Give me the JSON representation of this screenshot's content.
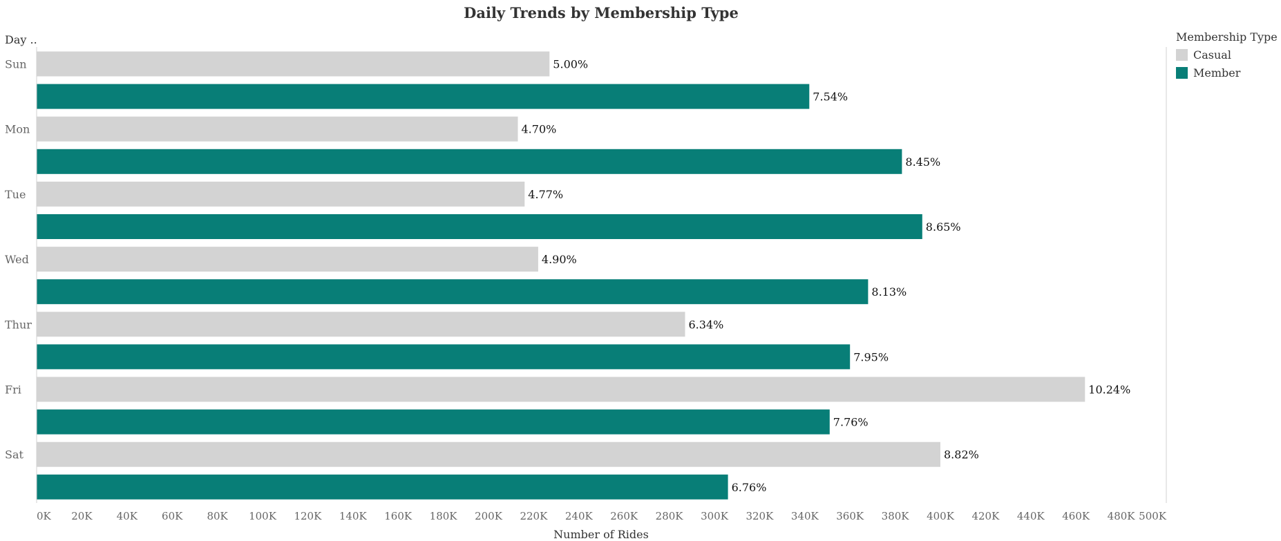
{
  "chart_data": {
    "type": "bar",
    "orientation": "horizontal",
    "title": "Daily Trends by Membership Type",
    "xlabel": "Number of Rides",
    "ylabel": "Day ..",
    "xlim": [
      0,
      500000
    ],
    "x_ticks": [
      "0K",
      "20K",
      "40K",
      "60K",
      "80K",
      "100K",
      "120K",
      "140K",
      "160K",
      "180K",
      "200K",
      "220K",
      "240K",
      "260K",
      "280K",
      "300K",
      "320K",
      "340K",
      "360K",
      "380K",
      "400K",
      "420K",
      "440K",
      "460K",
      "480K",
      "500K"
    ],
    "categories": [
      "Sun",
      "Mon",
      "Tue",
      "Wed",
      "Thur",
      "Fri",
      "Sat"
    ],
    "legend_title": "Membership Type",
    "legend_position": "top-right",
    "series": [
      {
        "name": "Casual",
        "color": "#d3d3d3",
        "values": [
          227000,
          213000,
          216000,
          222000,
          287000,
          464000,
          400000
        ],
        "labels": [
          "5.00%",
          "4.70%",
          "4.77%",
          "4.90%",
          "6.34%",
          "10.24%",
          "8.82%"
        ]
      },
      {
        "name": "Member",
        "color": "#087e77",
        "values": [
          342000,
          383000,
          392000,
          368000,
          360000,
          351000,
          306000
        ],
        "labels": [
          "7.54%",
          "8.45%",
          "8.65%",
          "8.13%",
          "7.95%",
          "7.76%",
          "6.76%"
        ]
      }
    ]
  }
}
